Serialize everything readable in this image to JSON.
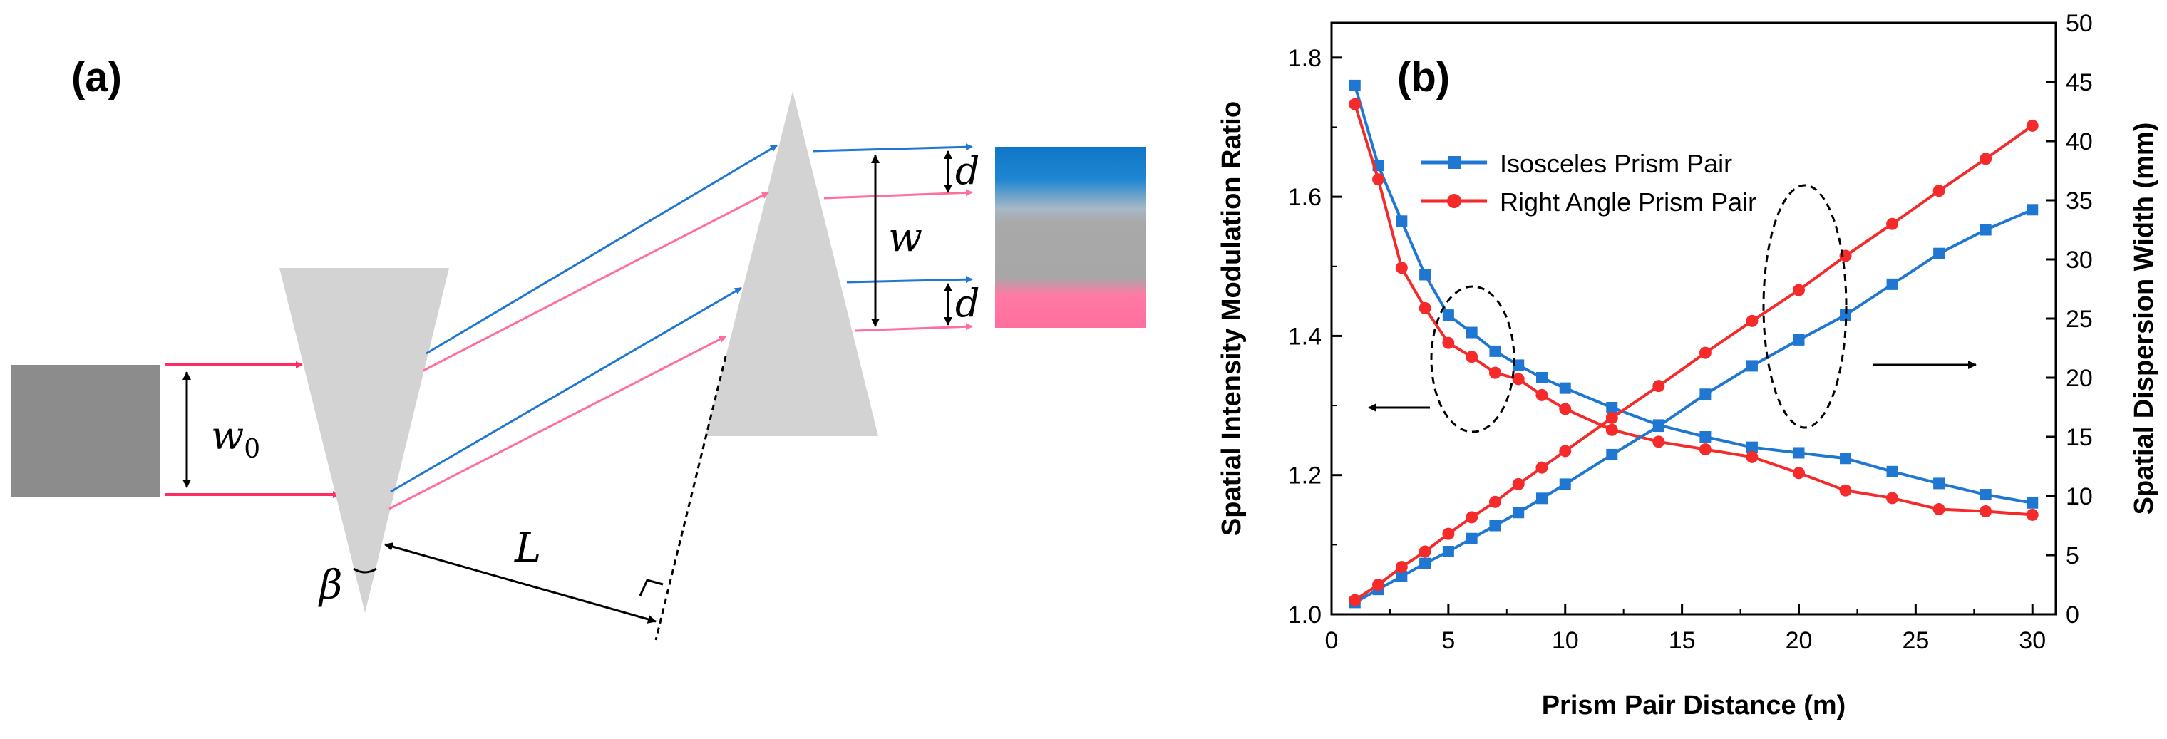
{
  "panel_a": {
    "label": "(a)",
    "symbols": {
      "w0": "w",
      "w0_sub": "0",
      "w": "w",
      "d_top": "d",
      "d_bottom": "d",
      "L": "L",
      "beta": "β"
    },
    "colors": {
      "blue": "#1f77d2",
      "pink": "#ff6f9a",
      "red_beam": "#ff2d63",
      "prism": "#d3d3d3",
      "source": "#8c8c8c"
    }
  },
  "panel_b": {
    "label": "(b)",
    "chart_data": {
      "type": "line",
      "xlabel": "Prism Pair Distance (m)",
      "ylabel_left": "Spatial Intensity Modulation Ratio",
      "ylabel_right": "Spatial Dispersion Width (mm)",
      "xlim": [
        0,
        31
      ],
      "ylim_left": [
        1.0,
        1.85
      ],
      "ylim_right": [
        0,
        50
      ],
      "x_ticks": [
        0,
        5,
        10,
        15,
        20,
        25,
        30
      ],
      "y_left_ticks": [
        "1.0",
        "1.2",
        "1.4",
        "1.6",
        "1.8"
      ],
      "y_right_ticks": [
        "0",
        "5",
        "10",
        "15",
        "20",
        "25",
        "30",
        "35",
        "40",
        "45",
        "50"
      ],
      "legend": [
        "Isosceles Prism Pair",
        "Right Angle Prism Pair"
      ],
      "x": [
        1,
        2,
        3,
        4,
        5,
        6,
        7,
        8,
        9,
        10,
        12,
        14,
        16,
        18,
        20,
        22,
        24,
        26,
        28,
        30
      ],
      "series": [
        {
          "name": "Isosceles Prism Pair",
          "axis": "left",
          "color": "#1f77d2",
          "marker": "square",
          "values": [
            1.76,
            1.645,
            1.565,
            1.488,
            1.43,
            1.405,
            1.378,
            1.358,
            1.34,
            1.325,
            1.297,
            1.272,
            1.255,
            1.24,
            1.232,
            1.224,
            1.205,
            1.188,
            1.172,
            1.16
          ]
        },
        {
          "name": "Right Angle Prism Pair",
          "axis": "left",
          "color": "#f52a2a",
          "marker": "circle",
          "values": [
            1.733,
            1.625,
            1.498,
            1.44,
            1.39,
            1.37,
            1.347,
            1.338,
            1.315,
            1.295,
            1.265,
            1.248,
            1.237,
            1.226,
            1.203,
            1.178,
            1.167,
            1.151,
            1.148,
            1.143
          ]
        },
        {
          "name": "Isosceles Prism Pair",
          "axis": "right",
          "color": "#1f77d2",
          "marker": "square",
          "values": [
            1.0,
            2.1,
            3.2,
            4.3,
            5.3,
            6.4,
            7.5,
            8.6,
            9.8,
            11.0,
            13.5,
            15.9,
            18.6,
            21.0,
            23.2,
            25.3,
            27.9,
            30.5,
            32.5,
            34.2
          ]
        },
        {
          "name": "Right Angle Prism Pair",
          "axis": "right",
          "color": "#f52a2a",
          "marker": "circle",
          "values": [
            1.2,
            2.5,
            4.0,
            5.3,
            6.8,
            8.2,
            9.5,
            11.0,
            12.4,
            13.8,
            16.6,
            19.3,
            22.1,
            24.8,
            27.4,
            30.3,
            33.0,
            35.8,
            38.5,
            41.3
          ]
        }
      ]
    }
  }
}
